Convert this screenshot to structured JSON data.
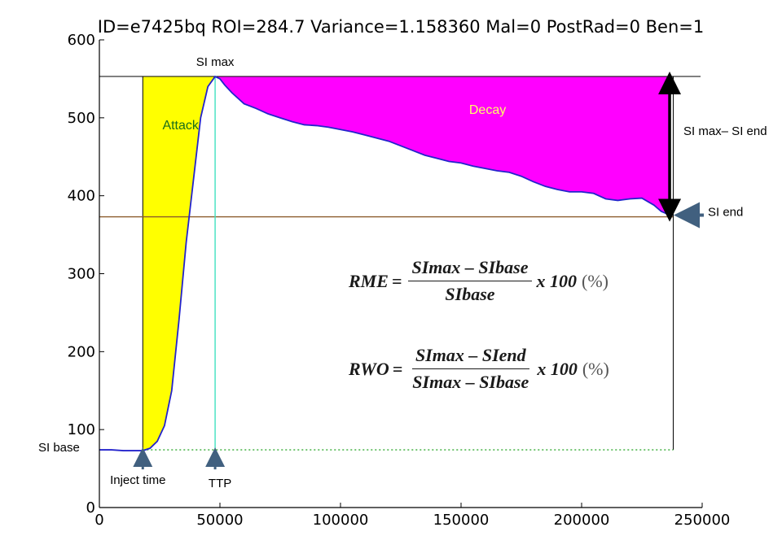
{
  "chart_data": {
    "type": "area",
    "title": "ID=e7425bq ROI=284.7 Variance=1.158360 Mal=0 PostRad=0 Ben=1",
    "xlabel": "",
    "ylabel": "",
    "xlim": [
      0,
      250000
    ],
    "ylim": [
      0,
      600
    ],
    "xticks": [
      {
        "value": 0,
        "label": "0"
      },
      {
        "value": 50000,
        "label": "50000"
      },
      {
        "value": 100000,
        "label": "100000"
      },
      {
        "value": 150000,
        "label": "150000"
      },
      {
        "value": 200000,
        "label": "200000"
      },
      {
        "value": 250000,
        "label": "250000"
      }
    ],
    "yticks": [
      {
        "value": 0,
        "label": "0"
      },
      {
        "value": 100,
        "label": "100"
      },
      {
        "value": 200,
        "label": "200"
      },
      {
        "value": 300,
        "label": "300"
      },
      {
        "value": 400,
        "label": "400"
      },
      {
        "value": 500,
        "label": "500"
      },
      {
        "value": 600,
        "label": "600"
      }
    ],
    "grid": false,
    "series": [
      {
        "color": "#2323cc",
        "x": [
          0,
          5000,
          10000,
          15000,
          18000,
          21000,
          24000,
          27000,
          30000,
          33000,
          36000,
          39000,
          42000,
          45000,
          48000,
          50000,
          52000,
          55000,
          60000,
          65000,
          70000,
          75000,
          80000,
          85000,
          90000,
          95000,
          100000,
          105000,
          110000,
          115000,
          120000,
          125000,
          130000,
          135000,
          140000,
          145000,
          150000,
          155000,
          160000,
          165000,
          170000,
          175000,
          180000,
          185000,
          190000,
          195000,
          200000,
          205000,
          210000,
          215000,
          220000,
          225000,
          230000,
          233000,
          236000
        ],
        "y": [
          74,
          74,
          73,
          73,
          73,
          76,
          85,
          105,
          150,
          240,
          340,
          420,
          500,
          540,
          553,
          550,
          542,
          532,
          518,
          512,
          505,
          500,
          495,
          491,
          490,
          488,
          485,
          482,
          478,
          474,
          470,
          464,
          458,
          452,
          448,
          444,
          442,
          438,
          435,
          432,
          430,
          425,
          418,
          412,
          408,
          405,
          405,
          403,
          396,
          394,
          396,
          397,
          388,
          380,
          376
        ]
      }
    ],
    "si_max": 553,
    "si_end": 373,
    "si_base": 74,
    "inject_time": 18000,
    "ttp": 48000,
    "end_time": 238000,
    "regions": [
      {
        "label": "Attack",
        "x_start": 18000,
        "x_end": 48000,
        "color": "#ffff00",
        "label_color": "#1a6e1a"
      },
      {
        "label": "Decay",
        "x_start": 48000,
        "x_end": 238000,
        "color": "#ff00ff",
        "label_color": "#ffff66"
      }
    ],
    "annotations": {
      "si_max": "SI max",
      "si_base": "SI base",
      "si_end": "SI end",
      "si_range": "SI max– SI end",
      "inject_time": "Inject time",
      "ttp": "TTP"
    },
    "reference_lines": {
      "si_max_color": "#000000",
      "si_end_color": "#8b5a2b",
      "ttp_color": "#40e0c0",
      "si_base_color": "#33aa33"
    }
  },
  "formulas": {
    "rme": {
      "lhs": "RME",
      "eq": "=",
      "num": "SImax – SIbase",
      "den": "SIbase",
      "times": "x 100",
      "pct": "(%)"
    },
    "rwo": {
      "lhs": "RWO",
      "eq": "=",
      "num": "SImax – SIend",
      "den": "SImax – SIbase",
      "times": "x 100",
      "pct": "(%)"
    }
  }
}
